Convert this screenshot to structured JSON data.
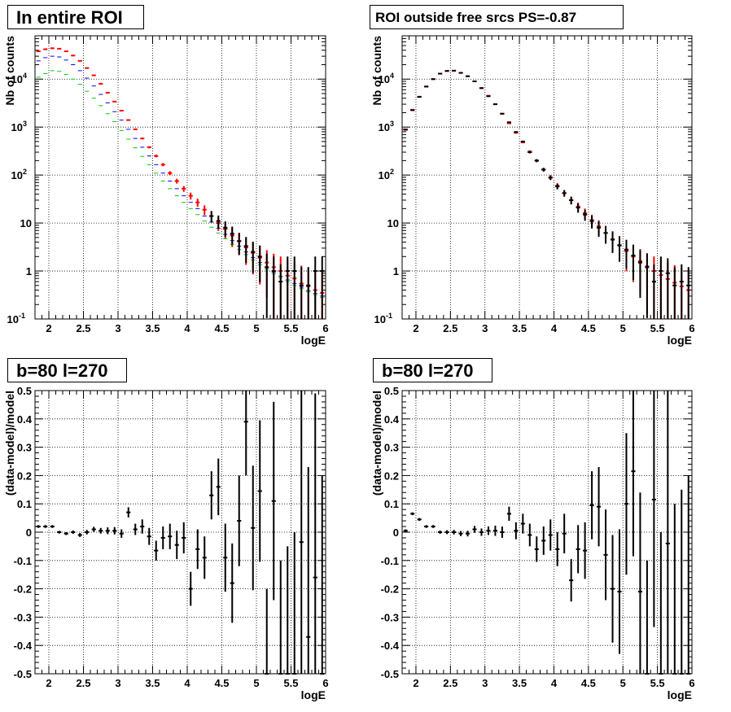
{
  "chart_data": [
    {
      "type": "scatter",
      "title": "In entire ROI",
      "xlabel": "logE",
      "ylabel": "Nb of counts",
      "xlim": [
        1.8,
        6.0
      ],
      "ylim": [
        0.1,
        80000
      ],
      "yscale": "log",
      "grid": true,
      "xticks": [
        "2",
        "2.5",
        "3",
        "3.5",
        "4",
        "4.5",
        "5",
        "5.5",
        "6"
      ],
      "yticks": [
        "10",
        "1",
        "10",
        "10²",
        "10³",
        "10⁴"
      ],
      "series": [
        {
          "color": "#ff0000",
          "style": "errorbar",
          "x": [
            1.85,
            1.95,
            2.05,
            2.15,
            2.25,
            2.35,
            2.45,
            2.55,
            2.65,
            2.75,
            2.85,
            2.95,
            3.05,
            3.15,
            3.25,
            3.35,
            3.45,
            3.55,
            3.65,
            3.75,
            3.85,
            3.95,
            4.05,
            4.15,
            4.25,
            4.35,
            4.45,
            4.55,
            4.65,
            4.75,
            4.85,
            4.95,
            5.05,
            5.15,
            5.25,
            5.35,
            5.45,
            5.55,
            5.65,
            5.75,
            5.85,
            5.95
          ],
          "y": [
            38000,
            42000,
            44000,
            43000,
            38000,
            31000,
            24000,
            17000,
            12000,
            8000,
            5200,
            3400,
            2200,
            1400,
            900,
            580,
            380,
            250,
            165,
            110,
            75,
            52,
            37,
            27,
            19,
            14,
            10,
            7.5,
            5.5,
            4.2,
            3.1,
            2.4,
            1.9,
            1.5,
            1.2,
            1.0,
            0.8,
            0.7,
            0.55,
            0.48,
            0.4,
            0.35
          ]
        },
        {
          "color": "#0000ff",
          "style": "step",
          "x": [
            1.85,
            1.95,
            2.05,
            2.15,
            2.25,
            2.35,
            2.45,
            2.55,
            2.65,
            2.75,
            2.85,
            2.95,
            3.05,
            3.15,
            3.25,
            3.35,
            3.45,
            3.55,
            3.65,
            3.75,
            3.85,
            3.95,
            4.05,
            4.15,
            4.25,
            4.35,
            4.45,
            4.55,
            4.65,
            4.75,
            4.85,
            4.95,
            5.05,
            5.15,
            5.25,
            5.35,
            5.45,
            5.55,
            5.65,
            5.75,
            5.85,
            5.95
          ],
          "y": [
            24000,
            28000,
            30000,
            29000,
            25000,
            20000,
            15000,
            10500,
            7200,
            4800,
            3200,
            2100,
            1400,
            900,
            580,
            380,
            250,
            165,
            110,
            75,
            52,
            37,
            27,
            20,
            14,
            10.5,
            7.8,
            5.8,
            4.3,
            3.3,
            2.5,
            1.9,
            1.5,
            1.2,
            0.95,
            0.78,
            0.65,
            0.55,
            0.46,
            0.39,
            0.34,
            0.3
          ]
        },
        {
          "color": "#00cc00",
          "style": "step",
          "x": [
            1.85,
            1.95,
            2.05,
            2.15,
            2.25,
            2.35,
            2.45,
            2.55,
            2.65,
            2.75,
            2.85,
            2.95,
            3.05,
            3.15,
            3.25,
            3.35,
            3.45,
            3.55,
            3.65,
            3.75,
            3.85,
            3.95,
            4.05,
            4.15,
            4.25,
            4.35,
            4.45,
            4.55,
            4.65,
            4.75,
            4.85,
            4.95,
            5.05,
            5.15,
            5.25,
            5.35,
            5.45,
            5.55,
            5.65,
            5.75,
            5.85,
            5.95
          ],
          "y": [
            11000,
            13000,
            15000,
            14500,
            12500,
            10000,
            7800,
            5600,
            4000,
            2800,
            1900,
            1300,
            850,
            560,
            370,
            245,
            165,
            110,
            75,
            52,
            37,
            27,
            20,
            15,
            11,
            8.2,
            6.2,
            4.7,
            3.6,
            2.8,
            2.2,
            1.7,
            1.35,
            1.1,
            0.88,
            0.72,
            0.6,
            0.5,
            0.43,
            0.37,
            0.32,
            0.28
          ]
        },
        {
          "color": "#000000",
          "style": "errorbar",
          "x": [
            4.35,
            4.45,
            4.55,
            4.65,
            4.75,
            4.85,
            4.95,
            5.05,
            5.15,
            5.25,
            5.35,
            5.45,
            5.55,
            5.65,
            5.75,
            5.85,
            5.95
          ],
          "y": [
            14,
            11,
            8,
            6,
            4.2,
            3.3,
            2.5,
            2.0,
            1.2,
            1.0,
            0.6,
            1.0,
            1.0,
            0.5,
            0.5,
            1.0,
            1.0
          ]
        }
      ]
    },
    {
      "type": "scatter",
      "title": "ROI outside free srcs PS=-0.87",
      "xlabel": "logE",
      "ylabel": "Nb of counts",
      "xlim": [
        1.8,
        6.0
      ],
      "ylim": [
        0.1,
        80000
      ],
      "yscale": "log",
      "grid": true,
      "xticks": [
        "2",
        "2.5",
        "3",
        "3.5",
        "4",
        "4.5",
        "5",
        "5.5",
        "6"
      ],
      "yticks": [
        "10",
        "1",
        "10",
        "10²",
        "10³",
        "10⁴"
      ],
      "series": [
        {
          "color": "#ff0000",
          "style": "errorbar",
          "x": [
            1.85,
            1.95,
            2.05,
            2.15,
            2.25,
            2.35,
            2.45,
            2.55,
            2.65,
            2.75,
            2.85,
            2.95,
            3.05,
            3.15,
            3.25,
            3.35,
            3.45,
            3.55,
            3.65,
            3.75,
            3.85,
            3.95,
            4.05,
            4.15,
            4.25,
            4.35,
            4.45,
            4.55,
            4.65,
            4.75,
            4.85,
            4.95,
            5.05,
            5.15,
            5.25,
            5.35,
            5.45,
            5.55,
            5.65,
            5.75,
            5.85,
            5.95
          ],
          "y": [
            900,
            2300,
            4300,
            7000,
            10000,
            13000,
            14800,
            15000,
            13500,
            11500,
            9000,
            6500,
            4500,
            3000,
            1900,
            1200,
            760,
            480,
            310,
            200,
            130,
            90,
            60,
            42,
            30,
            22,
            16,
            11.5,
            8.5,
            6.2,
            4.6,
            3.5,
            2.6,
            2.0,
            1.6,
            1.25,
            1.0,
            0.82,
            0.68,
            0.57,
            0.48,
            0.4
          ]
        },
        {
          "color": "#000000",
          "style": "errorbar",
          "x": [
            1.85,
            1.95,
            2.05,
            2.15,
            2.25,
            2.35,
            2.45,
            2.55,
            2.65,
            2.75,
            2.85,
            2.95,
            3.05,
            3.15,
            3.25,
            3.35,
            3.45,
            3.55,
            3.65,
            3.75,
            3.85,
            3.95,
            4.05,
            4.15,
            4.25,
            4.35,
            4.45,
            4.55,
            4.65,
            4.75,
            4.85,
            4.95,
            5.05,
            5.15,
            5.25,
            5.35,
            5.45,
            5.55,
            5.65,
            5.75,
            5.85,
            5.95
          ],
          "y": [
            880,
            2250,
            4250,
            7000,
            10000,
            13000,
            14800,
            15000,
            13500,
            11500,
            9000,
            6500,
            4400,
            3000,
            1900,
            1260,
            790,
            500,
            300,
            200,
            130,
            88,
            58,
            42,
            30,
            21,
            15,
            11,
            8,
            6.2,
            4.5,
            3.4,
            2.8,
            2.1,
            1.5,
            1.2,
            0.6,
            1.0,
            0.9,
            0.5,
            0.6,
            0.5
          ]
        }
      ]
    },
    {
      "type": "scatter",
      "title": "b=80 l=270",
      "xlabel": "logE",
      "ylabel": "(data-model)/model",
      "xlim": [
        1.8,
        6.0
      ],
      "ylim": [
        -0.5,
        0.5
      ],
      "grid": true,
      "xticks": [
        "2",
        "2.5",
        "3",
        "3.5",
        "4",
        "4.5",
        "5",
        "5.5",
        "6"
      ],
      "yticks": [
        "-0.5",
        "-0.4",
        "-0.3",
        "-0.2",
        "-0.1",
        "0",
        "0.1",
        "0.2",
        "0.3",
        "0.4",
        "0.5"
      ],
      "series": [
        {
          "color": "#000000",
          "style": "errorbar",
          "x": [
            1.85,
            1.95,
            2.05,
            2.15,
            2.25,
            2.35,
            2.45,
            2.55,
            2.65,
            2.75,
            2.85,
            2.95,
            3.05,
            3.15,
            3.25,
            3.35,
            3.45,
            3.55,
            3.65,
            3.75,
            3.85,
            3.95,
            4.05,
            4.15,
            4.25,
            4.35,
            4.45,
            4.55,
            4.65,
            4.75,
            4.85,
            4.95,
            5.05,
            5.15,
            5.25,
            5.35,
            5.45,
            5.55,
            5.65,
            5.75,
            5.85,
            5.95
          ],
          "y": [
            0.02,
            0.02,
            0.02,
            0.0,
            -0.005,
            0.0,
            -0.01,
            0.0,
            0.01,
            0.005,
            0.005,
            0.005,
            -0.005,
            0.07,
            0.01,
            0.02,
            -0.015,
            -0.065,
            -0.02,
            -0.015,
            -0.045,
            -0.02,
            -0.2,
            -0.06,
            -0.09,
            0.13,
            0.16,
            -0.09,
            -0.18,
            0.04,
            0.39,
            0.015,
            0.145,
            -0.5,
            0.11,
            -0.5,
            -0.5,
            -0.5,
            -0.035,
            -0.37,
            -0.16,
            -0.5
          ],
          "yerr": [
            0.005,
            0.005,
            0.005,
            0.005,
            0.005,
            0.006,
            0.007,
            0.008,
            0.009,
            0.01,
            0.012,
            0.013,
            0.015,
            0.018,
            0.02,
            0.025,
            0.03,
            0.035,
            0.04,
            0.045,
            0.05,
            0.055,
            0.06,
            0.07,
            0.075,
            0.085,
            0.1,
            0.12,
            0.14,
            0.16,
            0.19,
            0.22,
            0.25,
            0.3,
            0.35,
            0.4,
            0.45,
            0.5,
            0.55,
            0.6,
            0.65,
            0.7
          ]
        }
      ]
    },
    {
      "type": "scatter",
      "title": "b=80 l=270",
      "xlabel": "logE",
      "ylabel": "(data-model)/model",
      "xlim": [
        1.8,
        6.0
      ],
      "ylim": [
        -0.5,
        0.5
      ],
      "grid": true,
      "xticks": [
        "2",
        "2.5",
        "3",
        "3.5",
        "4",
        "4.5",
        "5",
        "5.5",
        "6"
      ],
      "yticks": [
        "-0.5",
        "-0.4",
        "-0.3",
        "-0.2",
        "-0.1",
        "0",
        "0.1",
        "0.2",
        "0.3",
        "0.4",
        "0.5"
      ],
      "series": [
        {
          "color": "#000000",
          "style": "errorbar",
          "x": [
            1.85,
            1.95,
            2.05,
            2.15,
            2.25,
            2.35,
            2.45,
            2.55,
            2.65,
            2.75,
            2.85,
            2.95,
            3.05,
            3.15,
            3.25,
            3.35,
            3.45,
            3.55,
            3.65,
            3.75,
            3.85,
            3.95,
            4.05,
            4.15,
            4.25,
            4.35,
            4.45,
            4.55,
            4.65,
            4.75,
            4.85,
            4.95,
            5.05,
            5.15,
            5.25,
            5.35,
            5.45,
            5.55,
            5.65,
            5.75,
            5.85,
            5.95
          ],
          "y": [
            0.005,
            0.065,
            0.045,
            0.02,
            0.02,
            0.0,
            0.0,
            0.0,
            -0.005,
            -0.005,
            0.01,
            0.0,
            0.005,
            0.005,
            0.0,
            0.065,
            0.005,
            0.03,
            -0.01,
            -0.06,
            -0.03,
            -0.01,
            -0.06,
            -0.005,
            -0.17,
            -0.06,
            -0.065,
            0.095,
            0.09,
            -0.08,
            -0.2,
            -0.21,
            0.1,
            0.215,
            -0.21,
            -0.5,
            0.115,
            -0.5,
            -0.04,
            -0.5,
            -0.5,
            -0.5
          ],
          "yerr": [
            0.005,
            0.005,
            0.005,
            0.005,
            0.005,
            0.006,
            0.007,
            0.008,
            0.009,
            0.01,
            0.012,
            0.013,
            0.015,
            0.018,
            0.02,
            0.025,
            0.03,
            0.035,
            0.04,
            0.045,
            0.05,
            0.055,
            0.06,
            0.07,
            0.075,
            0.085,
            0.1,
            0.12,
            0.14,
            0.16,
            0.19,
            0.22,
            0.25,
            0.3,
            0.35,
            0.4,
            0.45,
            0.5,
            0.55,
            0.6,
            0.65,
            0.7
          ]
        }
      ]
    }
  ]
}
